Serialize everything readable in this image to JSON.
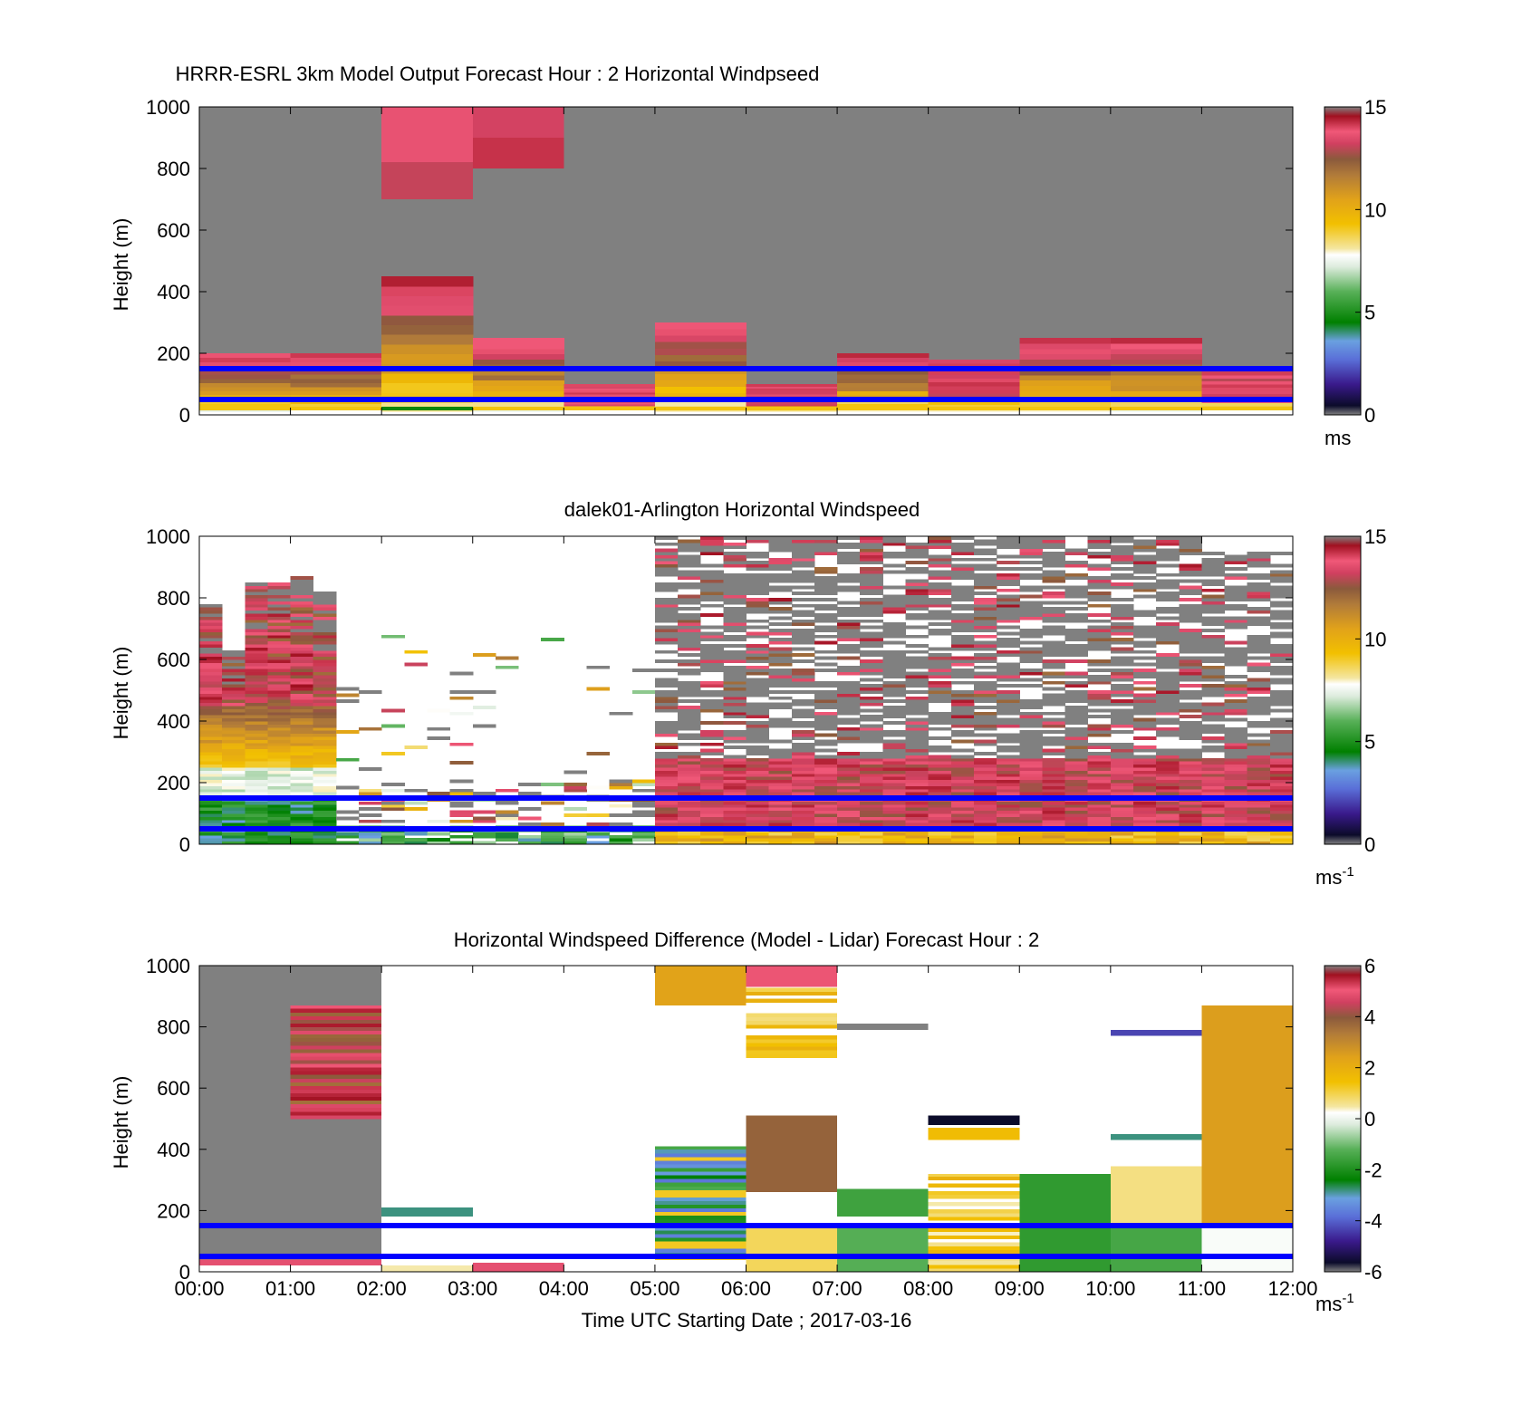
{
  "figure": {
    "xlabel": "Time UTC  Starting Date ; 2017-03-16",
    "x_ticks": [
      "00:00",
      "01:00",
      "02:00",
      "03:00",
      "04:00",
      "05:00",
      "06:00",
      "07:00",
      "08:00",
      "09:00",
      "10:00",
      "11:00",
      "12:00"
    ],
    "line_color": "#0000ff",
    "nodata_color": "#808080"
  },
  "chart_data": [
    {
      "type": "heatmap",
      "title": "HRRR-ESRL 3km Model Output   Forecast Hour : 2 Horizontal Windpseed",
      "ylabel": "Height (m)",
      "ylim": [
        0,
        1000
      ],
      "y_ticks": [
        "0",
        "200",
        "400",
        "600",
        "800",
        "1000"
      ],
      "xlim": [
        0,
        12
      ],
      "x_units": "hours UTC",
      "colorbar": {
        "range": [
          0,
          15
        ],
        "ticks": [
          "0",
          "5",
          "10",
          "15"
        ],
        "units_label": "ms",
        "units_exp": ""
      },
      "reference_lines_m": [
        50,
        150
      ],
      "background": "nodata",
      "hourly_top_m": [
        200,
        200,
        450,
        250,
        100,
        300,
        100,
        200,
        180,
        250,
        250,
        150
      ],
      "blocks": [
        {
          "x": [
            2,
            3
          ],
          "y": [
            940,
            1000
          ],
          "v": 13.8
        },
        {
          "x": [
            2,
            3
          ],
          "y": [
            820,
            940
          ],
          "v": 13.8
        },
        {
          "x": [
            2,
            3
          ],
          "y": [
            700,
            820
          ],
          "v": 13.2
        },
        {
          "x": [
            3,
            4
          ],
          "y": [
            900,
            1000
          ],
          "v": 13.4
        },
        {
          "x": [
            3,
            4
          ],
          "y": [
            800,
            900
          ],
          "v": 14.5
        }
      ]
    },
    {
      "type": "heatmap",
      "title": "dalek01-Arlington  Horizontal Windspeed",
      "ylabel": "Height (m)",
      "ylim": [
        0,
        1000
      ],
      "y_ticks": [
        "0",
        "200",
        "400",
        "600",
        "800",
        "1000"
      ],
      "xlim": [
        0,
        12
      ],
      "x_units": "hours UTC",
      "colorbar": {
        "range": [
          0,
          15
        ],
        "ticks": [
          "0",
          "5",
          "10",
          "15"
        ],
        "units_label": "ms",
        "units_exp": "-1"
      },
      "reference_lines_m": [
        50,
        150
      ],
      "segments": [
        {
          "x": [
            0.0,
            0.5
          ],
          "top": 800,
          "profile": "lidar-early"
        },
        {
          "x": [
            0.5,
            1.5
          ],
          "top": 1000,
          "profile": "lidar-early"
        },
        {
          "x": [
            1.5,
            5.0
          ],
          "top": 700,
          "profile": "lidar-sparse"
        },
        {
          "x": [
            5.0,
            11.0
          ],
          "top": 1000,
          "profile": "lidar-late"
        },
        {
          "x": [
            11.0,
            11.9
          ],
          "top": 950,
          "profile": "lidar-late"
        }
      ]
    },
    {
      "type": "heatmap",
      "title": "Horizontal Windspeed Difference (Model - Lidar) Forecast Hour : 2",
      "ylabel": "Height (m)",
      "ylim": [
        0,
        1000
      ],
      "y_ticks": [
        "0",
        "200",
        "400",
        "600",
        "800",
        "1000"
      ],
      "xlim": [
        0,
        12
      ],
      "x_units": "hours UTC",
      "colorbar": {
        "range": [
          -6,
          6
        ],
        "ticks": [
          "-6",
          "-4",
          "-2",
          "0",
          "2",
          "4",
          "6"
        ],
        "units_label": "ms",
        "units_exp": "-1"
      },
      "reference_lines_m": [
        50,
        150
      ],
      "blocks": [
        {
          "x": [
            0,
            2
          ],
          "y": [
            40,
            1000
          ],
          "v": "nodata"
        },
        {
          "x": [
            0,
            2
          ],
          "y": [
            20,
            40
          ],
          "v": 5.0
        },
        {
          "x": [
            1,
            2
          ],
          "y": [
            500,
            870
          ],
          "v": "stripe-hot"
        },
        {
          "x": [
            2,
            3
          ],
          "y": [
            180,
            210
          ],
          "v": -2.5
        },
        {
          "x": [
            2,
            3
          ],
          "y": [
            0,
            20
          ],
          "v": 0.8
        },
        {
          "x": [
            3,
            4
          ],
          "y": [
            0,
            30
          ],
          "v": 5.0
        },
        {
          "x": [
            5,
            6
          ],
          "y": [
            870,
            1000
          ],
          "v": 2.5
        },
        {
          "x": [
            5,
            6
          ],
          "y": [
            40,
            410
          ],
          "v": "stripe-green"
        },
        {
          "x": [
            6,
            7
          ],
          "y": [
            930,
            1000
          ],
          "v": 5.2
        },
        {
          "x": [
            6,
            7
          ],
          "y": [
            700,
            930
          ],
          "v": "stripe-yellow"
        },
        {
          "x": [
            6,
            7
          ],
          "y": [
            260,
            510
          ],
          "v": 3.8
        },
        {
          "x": [
            6,
            7
          ],
          "y": [
            0,
            160
          ],
          "v": 1.2
        },
        {
          "x": [
            7,
            8
          ],
          "y": [
            790,
            810
          ],
          "v": "nodata"
        },
        {
          "x": [
            7,
            8
          ],
          "y": [
            180,
            270
          ],
          "v": -1.3
        },
        {
          "x": [
            7,
            8
          ],
          "y": [
            0,
            150
          ],
          "v": -1.0
        },
        {
          "x": [
            8,
            9
          ],
          "y": [
            480,
            510
          ],
          "v": -6.0
        },
        {
          "x": [
            8,
            9
          ],
          "y": [
            430,
            470
          ],
          "v": 1.8
        },
        {
          "x": [
            8,
            9
          ],
          "y": [
            0,
            320
          ],
          "v": "stripe-yellow"
        },
        {
          "x": [
            9,
            10
          ],
          "y": [
            0,
            320
          ],
          "v": -1.5
        },
        {
          "x": [
            10,
            11
          ],
          "y": [
            430,
            450
          ],
          "v": -2.5
        },
        {
          "x": [
            10,
            11
          ],
          "y": [
            770,
            790
          ],
          "v": -4.2
        },
        {
          "x": [
            10,
            11
          ],
          "y": [
            160,
            345
          ],
          "v": 1.0
        },
        {
          "x": [
            10,
            11
          ],
          "y": [
            0,
            160
          ],
          "v": -1.2
        },
        {
          "x": [
            11,
            12
          ],
          "y": [
            150,
            870
          ],
          "v": 2.6
        },
        {
          "x": [
            11,
            12
          ],
          "y": [
            0,
            150
          ],
          "v": 0.4
        }
      ]
    }
  ]
}
